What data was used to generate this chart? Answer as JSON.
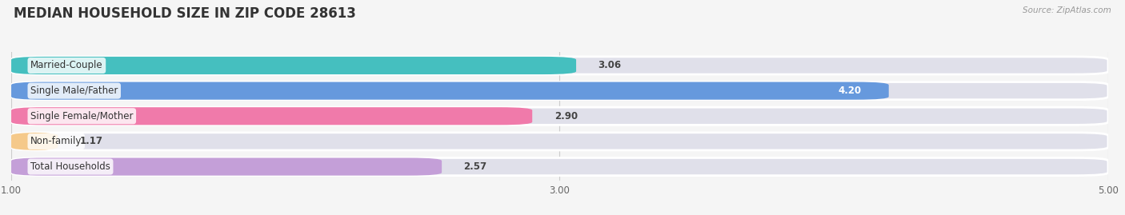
{
  "title": "MEDIAN HOUSEHOLD SIZE IN ZIP CODE 28613",
  "source": "Source: ZipAtlas.com",
  "categories": [
    "Married-Couple",
    "Single Male/Father",
    "Single Female/Mother",
    "Non-family",
    "Total Households"
  ],
  "values": [
    3.06,
    4.2,
    2.9,
    1.17,
    2.57
  ],
  "bar_colors": [
    "#45bfbf",
    "#6699dd",
    "#f07aaa",
    "#f5c98a",
    "#c49fd8"
  ],
  "value_label_colors": [
    "#444444",
    "#ffffff",
    "#444444",
    "#444444",
    "#444444"
  ],
  "background_color": "#f5f5f5",
  "bar_bg_color": "#e0e0ea",
  "xlim": [
    1.0,
    5.0
  ],
  "xticks": [
    1.0,
    3.0,
    5.0
  ],
  "title_fontsize": 12,
  "label_fontsize": 8.5,
  "value_fontsize": 8.5
}
